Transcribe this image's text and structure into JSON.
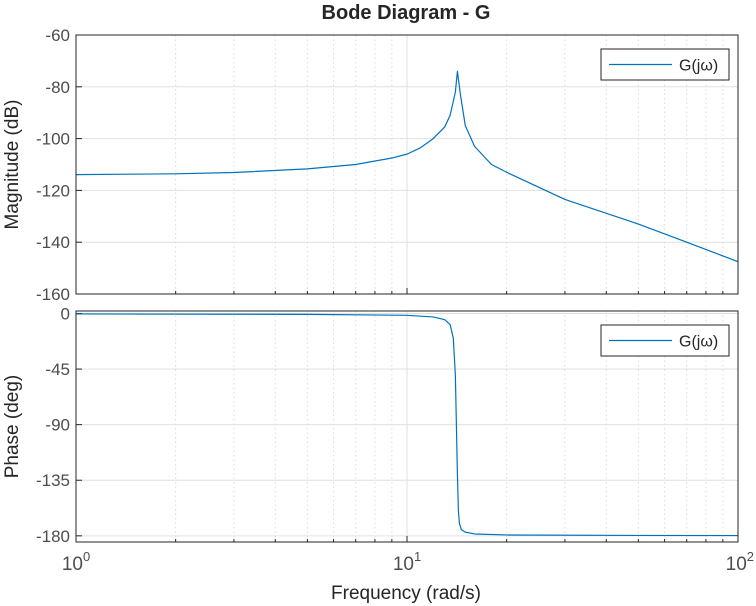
{
  "chart_data": {
    "type": "line",
    "title": "Bode Diagram - G",
    "xlabel": "Frequency  (rad/s)",
    "xscale": "log",
    "xlim": [
      1,
      100
    ],
    "x_ticks": [
      {
        "value": 1,
        "base": "10",
        "exp": "0"
      },
      {
        "value": 10,
        "base": "10",
        "exp": "1"
      },
      {
        "value": 100,
        "base": "10",
        "exp": "2"
      }
    ],
    "grid": true,
    "line_color": "#0072bd",
    "panels": [
      {
        "name": "magnitude",
        "ylabel": "Magnitude (dB)",
        "ylim": [
          -160,
          -60
        ],
        "yticks": [
          -60,
          -80,
          -100,
          -120,
          -140,
          -160
        ],
        "ytick_labels": [
          "-60",
          "-80",
          "-100",
          "-120",
          "-140",
          "-160"
        ],
        "legend": {
          "label": "G(jω)",
          "position": "top-right"
        },
        "series": [
          {
            "name": "G(jω)",
            "x": [
              1,
              2,
              3,
              5,
              7,
              9,
              10,
              11,
              12,
              13,
              13.5,
              14,
              14.2,
              14.5,
              15,
              16,
              18,
              20,
              30,
              50,
              70,
              100
            ],
            "y": [
              -113.9,
              -113.6,
              -113.1,
              -111.7,
              -110.0,
              -107.5,
              -106.0,
              -103.5,
              -100.0,
              -95.5,
              -91.0,
              -82.0,
              -74.0,
              -83.0,
              -95.0,
              -103.0,
              -110.0,
              -113.0,
              -123.5,
              -133.0,
              -140.0,
              -147.5
            ]
          }
        ]
      },
      {
        "name": "phase",
        "ylabel": "Phase (deg)",
        "ylim": [
          -185,
          2
        ],
        "yticks": [
          0,
          -45,
          -90,
          -135,
          -180
        ],
        "ytick_labels": [
          "0",
          "-45",
          "-90",
          "-135",
          "-180"
        ],
        "legend": {
          "label": "G(jω)",
          "position": "top-right"
        },
        "series": [
          {
            "name": "G(jω)",
            "x": [
              1,
              5,
              10,
              12,
              13,
              13.5,
              13.8,
              14.0,
              14.1,
              14.2,
              14.3,
              14.4,
              14.6,
              15,
              16,
              20,
              50,
              100
            ],
            "y": [
              -0.4,
              -0.7,
              -1.5,
              -2.8,
              -5.0,
              -9.0,
              -20.0,
              -50.0,
              -90.0,
              -130.0,
              -160.0,
              -170.0,
              -175.0,
              -177.0,
              -178.5,
              -179.3,
              -179.7,
              -179.8
            ]
          }
        ]
      }
    ]
  }
}
